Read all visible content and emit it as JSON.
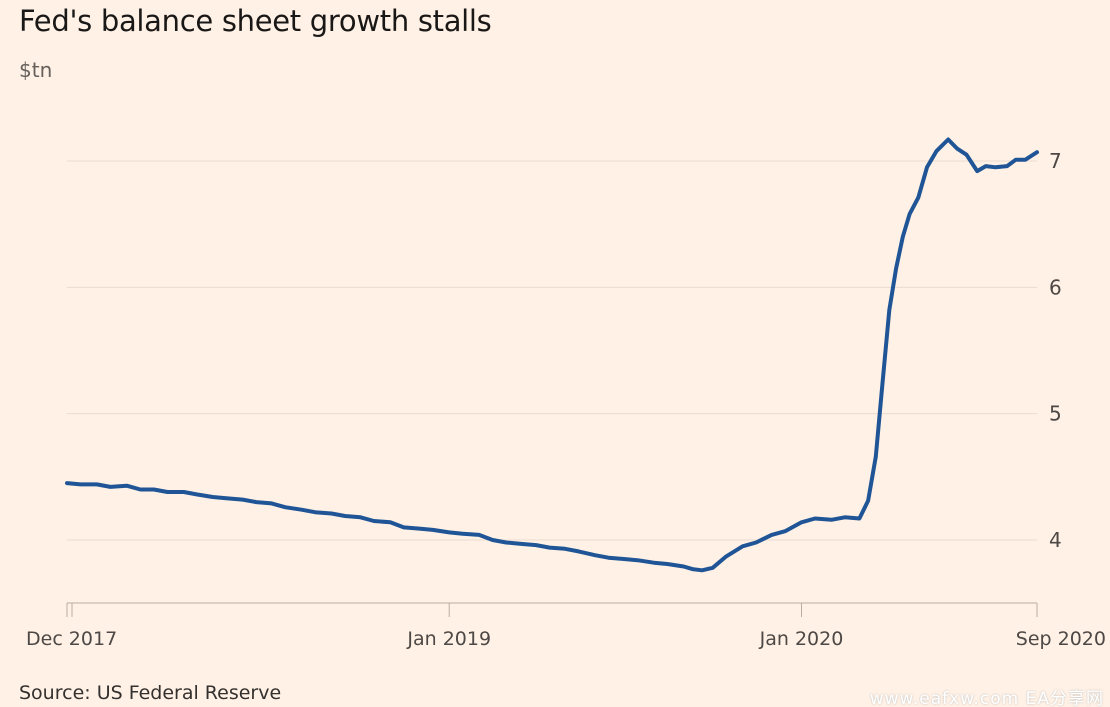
{
  "title": "Fed's balance sheet growth stalls",
  "unit": "$tn",
  "source": "Source: US Federal Reserve",
  "watermark": "www.eafxw.com  EA分享网",
  "colors": {
    "background": "#fff1e5",
    "line": "#1f5596",
    "grid": "#e9dccf",
    "axis": "#b9ada4"
  },
  "chart_data": {
    "type": "line",
    "title": "Fed's balance sheet growth stalls",
    "ylabel": "$tn",
    "xlabel": "",
    "xlim": [
      "2017-12-01",
      "2020-09-01"
    ],
    "ylim": [
      3.5,
      7.5
    ],
    "yticks": [
      4,
      5,
      6,
      7
    ],
    "xticks": [
      {
        "date": "2017-12-01",
        "label": "Dec 2017"
      },
      {
        "date": "2019-01-01",
        "label": "Jan 2019"
      },
      {
        "date": "2020-01-01",
        "label": "Jan 2020"
      },
      {
        "date": "2020-09-01",
        "label": "Sep 2020"
      }
    ],
    "grid": true,
    "legend": "none",
    "series": [
      {
        "x": [
          "2017-12-01",
          "2017-12-15",
          "2018-01-01",
          "2018-01-15",
          "2018-02-01",
          "2018-02-15",
          "2018-03-01",
          "2018-03-15",
          "2018-04-01",
          "2018-04-15",
          "2018-05-01",
          "2018-05-15",
          "2018-06-01",
          "2018-06-15",
          "2018-07-01",
          "2018-07-15",
          "2018-08-01",
          "2018-08-15",
          "2018-09-01",
          "2018-09-15",
          "2018-10-01",
          "2018-10-15",
          "2018-11-01",
          "2018-11-15",
          "2018-12-01",
          "2018-12-15",
          "2019-01-01",
          "2019-01-15",
          "2019-02-01",
          "2019-02-15",
          "2019-03-01",
          "2019-03-15",
          "2019-04-01",
          "2019-04-15",
          "2019-05-01",
          "2019-05-15",
          "2019-06-01",
          "2019-06-15",
          "2019-07-01",
          "2019-07-15",
          "2019-08-01",
          "2019-08-15",
          "2019-09-01",
          "2019-09-10",
          "2019-09-20",
          "2019-10-01",
          "2019-10-15",
          "2019-11-01",
          "2019-11-15",
          "2019-12-01",
          "2019-12-15",
          "2020-01-01",
          "2020-01-15",
          "2020-02-01",
          "2020-02-15",
          "2020-03-01",
          "2020-03-10",
          "2020-03-18",
          "2020-03-25",
          "2020-04-01",
          "2020-04-08",
          "2020-04-15",
          "2020-04-22",
          "2020-05-01",
          "2020-05-10",
          "2020-05-20",
          "2020-06-01",
          "2020-06-10",
          "2020-06-20",
          "2020-07-01",
          "2020-07-10",
          "2020-07-20",
          "2020-08-01",
          "2020-08-10",
          "2020-08-20",
          "2020-09-01"
        ],
        "y": [
          4.45,
          4.44,
          4.44,
          4.42,
          4.43,
          4.4,
          4.4,
          4.38,
          4.38,
          4.36,
          4.34,
          4.33,
          4.32,
          4.3,
          4.29,
          4.26,
          4.24,
          4.22,
          4.21,
          4.19,
          4.18,
          4.15,
          4.14,
          4.1,
          4.09,
          4.08,
          4.06,
          4.05,
          4.04,
          4.0,
          3.98,
          3.97,
          3.96,
          3.94,
          3.93,
          3.91,
          3.88,
          3.86,
          3.85,
          3.84,
          3.82,
          3.81,
          3.79,
          3.77,
          3.76,
          3.78,
          3.87,
          3.95,
          3.98,
          4.04,
          4.07,
          4.14,
          4.17,
          4.16,
          4.18,
          4.17,
          4.31,
          4.66,
          5.25,
          5.82,
          6.15,
          6.4,
          6.58,
          6.71,
          6.95,
          7.08,
          7.17,
          7.1,
          7.05,
          6.92,
          6.96,
          6.95,
          6.96,
          7.01,
          7.01,
          7.07
        ]
      }
    ]
  }
}
